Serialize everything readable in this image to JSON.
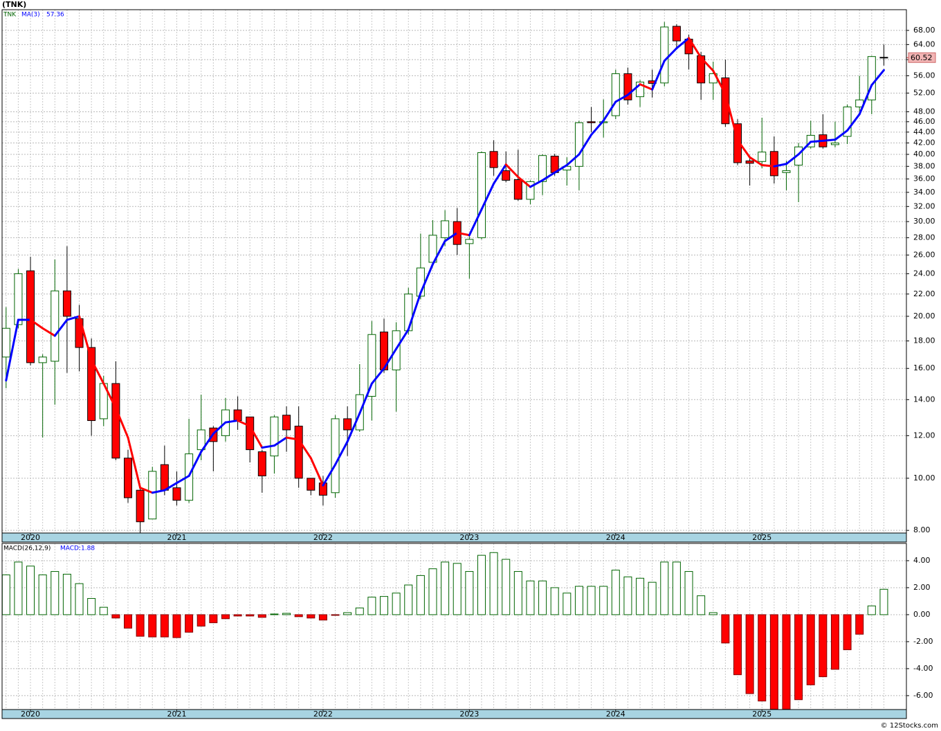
{
  "footer": "© 12Stocks.com",
  "chart_data": [
    {
      "type": "candlestick",
      "title": "(TNK)",
      "log_scale": true,
      "grid": true,
      "categories": [
        null,
        null,
        "2020",
        null,
        null,
        null,
        null,
        null,
        null,
        null,
        null,
        null,
        null,
        null,
        "2021",
        null,
        null,
        null,
        null,
        null,
        null,
        null,
        null,
        null,
        null,
        null,
        "2022",
        null,
        null,
        null,
        null,
        null,
        null,
        null,
        null,
        null,
        null,
        null,
        "2023",
        null,
        null,
        null,
        null,
        null,
        null,
        null,
        null,
        null,
        null,
        null,
        "2024",
        null,
        null,
        null,
        null,
        null,
        null,
        null,
        null,
        null,
        null,
        null,
        "2025",
        null,
        null,
        null,
        null,
        null,
        null,
        null,
        null,
        null,
        null
      ],
      "ylim": [
        7.91,
        74.3
      ],
      "yticks": [
        {
          "value": 8,
          "label": "8.00"
        },
        {
          "value": 10,
          "label": "10.00"
        },
        {
          "value": 12,
          "label": "12.00"
        },
        {
          "value": 14,
          "label": "14.00"
        },
        {
          "value": 16,
          "label": "16.00"
        },
        {
          "value": 18,
          "label": "18.00"
        },
        {
          "value": 20,
          "label": "20.00"
        },
        {
          "value": 22,
          "label": "22.00"
        },
        {
          "value": 24,
          "label": "24.00"
        },
        {
          "value": 26,
          "label": "26.00"
        },
        {
          "value": 28,
          "label": "28.00"
        },
        {
          "value": 30,
          "label": "30.00"
        },
        {
          "value": 32,
          "label": "32.00"
        },
        {
          "value": 34,
          "label": "34.00"
        },
        {
          "value": 36,
          "label": "36.00"
        },
        {
          "value": 38,
          "label": "38.00"
        },
        {
          "value": 40,
          "label": "40.00"
        },
        {
          "value": 42,
          "label": "42.00"
        },
        {
          "value": 44,
          "label": "44.00"
        },
        {
          "value": 46,
          "label": "46.00"
        },
        {
          "value": 48,
          "label": "48.00"
        },
        {
          "value": 52,
          "label": "52.00"
        },
        {
          "value": 56,
          "label": "56.00"
        },
        {
          "value": 60,
          "label": "60.00"
        },
        {
          "value": 64,
          "label": "64.00"
        },
        {
          "value": 68,
          "label": "68.00"
        }
      ],
      "series": [
        {
          "name": "TNK",
          "color": "#006400",
          "up_color": "#006400",
          "down_color": "#ff0000",
          "open": [
            16.8,
            19.3,
            24.3,
            16.4,
            16.5,
            22.3,
            19.8,
            17.5,
            12.9,
            15.0,
            10.9,
            9.5,
            8.4,
            10.6,
            9.6,
            9.1,
            11.3,
            12.4,
            12.0,
            13.4,
            13.0,
            11.2,
            11.0,
            13.1,
            12.5,
            10.0,
            9.8,
            9.4,
            12.9,
            12.3,
            14.2,
            18.7,
            15.9,
            18.8,
            21.8,
            25.2,
            28.0,
            30.0,
            27.3,
            28.0,
            40.5,
            37.3,
            35.9,
            33.0,
            35.6,
            39.7,
            37.4,
            38.0,
            46.0,
            45.8,
            47.2,
            56.5,
            51.2,
            54.8,
            54.3,
            69.2,
            65.5,
            61.0,
            54.3,
            55.5,
            45.6,
            38.9,
            38.8,
            40.5,
            37.0,
            38.2,
            41.3,
            43.5,
            41.7,
            43.2,
            49.0,
            50.5,
            60.6
          ],
          "high": [
            20.8,
            24.5,
            25.8,
            17.0,
            25.5,
            27.0,
            21.0,
            18.2,
            15.5,
            16.5,
            11.3,
            9.7,
            10.5,
            11.5,
            10.3,
            12.9,
            14.3,
            12.5,
            14.1,
            14.2,
            13.0,
            11.3,
            13.1,
            13.6,
            13.6,
            10.0,
            10.1,
            13.1,
            13.6,
            16.3,
            19.6,
            19.8,
            19.5,
            22.6,
            28.5,
            30.2,
            31.5,
            31.8,
            28.2,
            40.5,
            42.5,
            40.5,
            40.8,
            35.8,
            40.0,
            40.1,
            39.5,
            46.2,
            49.0,
            50.6,
            57.5,
            58.0,
            55.0,
            57.5,
            70.5,
            69.8,
            66.8,
            62.0,
            59.5,
            60.0,
            46.5,
            39.8,
            46.8,
            43.2,
            38.9,
            42.0,
            46.2,
            47.5,
            46.0,
            49.5,
            56.0,
            61.0,
            64.0
          ],
          "low": [
            14.7,
            19.0,
            16.2,
            11.9,
            13.7,
            15.7,
            15.8,
            12.0,
            12.5,
            10.8,
            9.0,
            7.9,
            8.4,
            9.3,
            8.9,
            9.0,
            10.8,
            10.3,
            11.7,
            12.3,
            10.7,
            9.4,
            10.2,
            11.2,
            9.6,
            9.3,
            8.9,
            9.2,
            11.0,
            12.2,
            12.8,
            15.7,
            13.3,
            18.5,
            21.5,
            25.0,
            27.0,
            26.0,
            23.5,
            27.8,
            36.5,
            35.5,
            32.8,
            32.3,
            33.6,
            36.5,
            35.0,
            34.3,
            44.0,
            43.0,
            46.5,
            49.5,
            49.0,
            51.0,
            53.5,
            63.0,
            57.5,
            50.5,
            50.5,
            45.0,
            38.2,
            35.0,
            37.7,
            35.3,
            34.3,
            32.6,
            41.0,
            41.0,
            41.2,
            41.8,
            48.0,
            47.5,
            58.5
          ],
          "close": [
            19.0,
            24.0,
            16.4,
            16.8,
            22.3,
            20.0,
            17.5,
            12.8,
            15.0,
            10.9,
            9.2,
            8.3,
            10.3,
            9.5,
            9.1,
            11.1,
            12.3,
            11.7,
            13.4,
            12.8,
            11.3,
            10.1,
            13.0,
            12.3,
            10.0,
            9.5,
            9.3,
            12.9,
            12.3,
            14.3,
            18.5,
            15.9,
            18.8,
            22.0,
            24.6,
            28.3,
            30.1,
            27.2,
            27.8,
            40.3,
            37.8,
            35.8,
            33.0,
            35.6,
            39.8,
            37.0,
            38.0,
            45.8,
            45.8,
            46.0,
            56.5,
            50.5,
            54.5,
            54.2,
            69.0,
            65.0,
            61.5,
            54.3,
            56.5,
            45.6,
            38.6,
            38.5,
            40.4,
            36.5,
            37.3,
            41.3,
            43.4,
            41.3,
            42.0,
            49.0,
            50.5,
            60.8,
            60.52
          ]
        }
      ],
      "ma": {
        "name": "MA(3)",
        "color": "#0000ff",
        "down_color": "#ff0000",
        "values": [
          15.2,
          19.7,
          19.7,
          19.0,
          18.4,
          19.7,
          20.0,
          16.6,
          15.0,
          13.5,
          11.9,
          9.6,
          9.4,
          9.5,
          9.8,
          10.1,
          11.2,
          12.1,
          12.7,
          12.8,
          12.5,
          11.4,
          11.5,
          11.9,
          11.8,
          10.9,
          9.7,
          10.6,
          11.7,
          13.2,
          15.0,
          16.0,
          17.4,
          18.9,
          22.1,
          25.0,
          27.6,
          28.6,
          28.3,
          31.6,
          35.3,
          38.3,
          36.3,
          34.8,
          35.8,
          37.0,
          38.2,
          40.0,
          43.5,
          46.2,
          50.1,
          51.6,
          54.0,
          52.8,
          59.7,
          63.0,
          65.8,
          60.5,
          57.2,
          51.8,
          42.5,
          39.5,
          38.2,
          38.0,
          38.4,
          40.0,
          42.2,
          42.4,
          42.6,
          44.3,
          47.5,
          53.8,
          57.36
        ]
      }
    },
    {
      "type": "bar",
      "title": "MACD(26,12,9)",
      "legend_label": "MACD:1.88",
      "up_color": "#006400",
      "down_color": "#ff0000",
      "grid": true,
      "ylim": [
        -7.03,
        5.28
      ],
      "yticks": [
        {
          "value": -6,
          "label": "-6.00"
        },
        {
          "value": -4,
          "label": "-4.00"
        },
        {
          "value": -2,
          "label": "-2.00"
        },
        {
          "value": 0,
          "label": "0.00"
        },
        {
          "value": 2,
          "label": "2.00"
        },
        {
          "value": 4,
          "label": "4.00"
        }
      ],
      "values": [
        2.95,
        3.9,
        3.6,
        2.95,
        3.2,
        3.0,
        2.3,
        1.2,
        0.55,
        -0.25,
        -1.0,
        -1.6,
        -1.65,
        -1.65,
        -1.7,
        -1.3,
        -0.85,
        -0.6,
        -0.3,
        -0.1,
        -0.1,
        -0.2,
        0.05,
        0.1,
        -0.15,
        -0.25,
        -0.4,
        -0.05,
        0.15,
        0.5,
        1.3,
        1.35,
        1.6,
        2.2,
        2.9,
        3.4,
        3.9,
        3.8,
        3.2,
        4.4,
        4.6,
        4.1,
        3.2,
        2.5,
        2.5,
        2.0,
        1.6,
        2.1,
        2.1,
        2.1,
        3.3,
        2.8,
        2.7,
        2.4,
        3.9,
        3.9,
        3.2,
        1.4,
        0.15,
        -2.1,
        -4.45,
        -5.85,
        -6.4,
        -7.0,
        -7.0,
        -6.3,
        -5.2,
        -4.6,
        -4.05,
        -2.6,
        -1.45,
        0.65,
        1.88
      ]
    }
  ]
}
